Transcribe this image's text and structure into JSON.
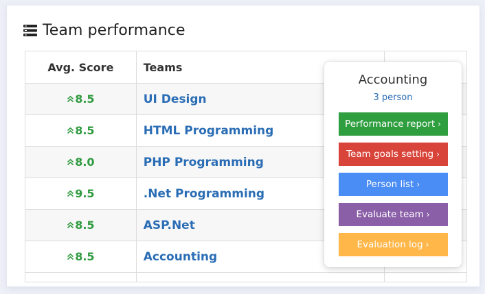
{
  "header": {
    "icon": "server-stack-icon",
    "title": "Team performance"
  },
  "table": {
    "columns": [
      "Avg. Score",
      "Teams",
      ""
    ],
    "rows": [
      {
        "score": "8.5",
        "team": "UI Design",
        "trend": "up"
      },
      {
        "score": "8.5",
        "team": "HTML Programming",
        "trend": "up"
      },
      {
        "score": "8.0",
        "team": "PHP Programming",
        "trend": "up"
      },
      {
        "score": "9.5",
        "team": ".Net Programming",
        "trend": "up"
      },
      {
        "score": "8.5",
        "team": "ASP.Net",
        "trend": "up"
      },
      {
        "score": "8.5",
        "team": "Accounting",
        "trend": "up"
      }
    ]
  },
  "popover": {
    "title": "Accounting",
    "subtitle": "3 person",
    "buttons": [
      {
        "label": "Performance report",
        "color": "#2e9e3f",
        "icon": "chevron-right-icon"
      },
      {
        "label": "Team goals setting",
        "color": "#d9443a",
        "icon": "chevron-right-icon"
      },
      {
        "label": "Person list",
        "color": "#4a8df5",
        "icon": "chevron-right-icon"
      },
      {
        "label": "Evaluate team",
        "color": "#8b5fa8",
        "icon": "chevron-right-icon"
      },
      {
        "label": "Evaluation log",
        "color": "#ffb74a",
        "icon": "chevron-right-icon"
      }
    ]
  },
  "colors": {
    "score_green": "#2e9a3e",
    "team_link_blue": "#2a6db5"
  }
}
